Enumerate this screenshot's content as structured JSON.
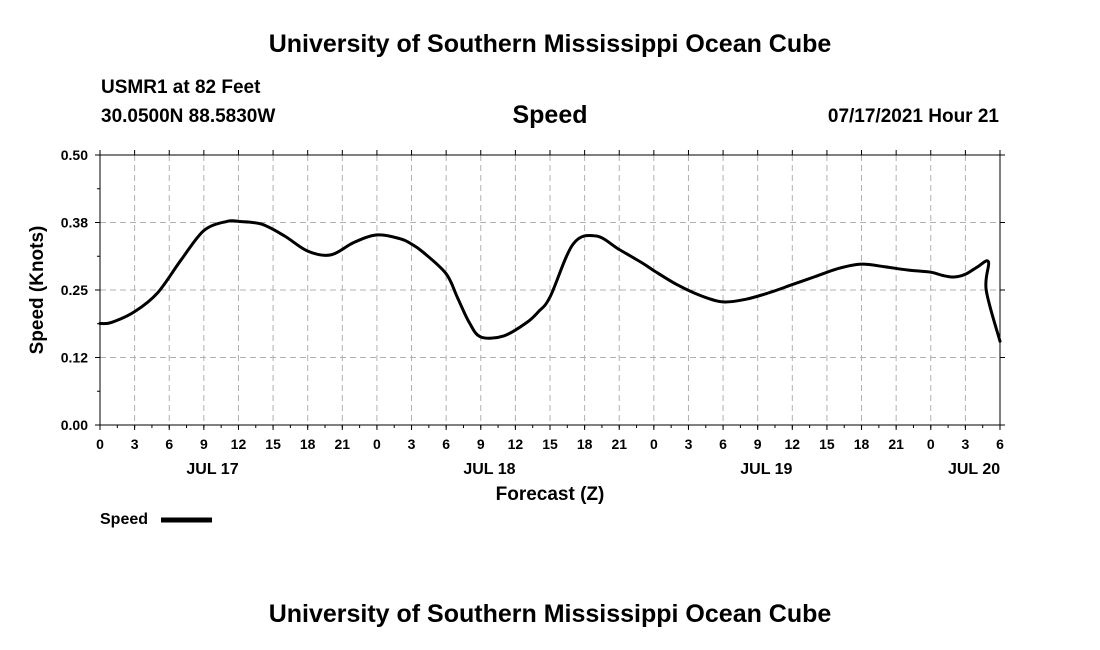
{
  "header": {
    "title": "University of Southern Mississippi Ocean Cube",
    "station": "USMR1 at 82 Feet",
    "location": "30.0500N  88.5830W",
    "variable": "Speed",
    "timestamp": "07/17/2021 Hour 21"
  },
  "footer": {
    "title": "University of Southern Mississippi Ocean Cube"
  },
  "chart_data": {
    "type": "line",
    "title": "Speed",
    "xlabel": "Forecast (Z)",
    "ylabel": "Speed (Knots)",
    "ylim": [
      0,
      0.5
    ],
    "xlim": [
      0,
      78
    ],
    "grid": true,
    "y_ticks": [
      {
        "value": 0.0,
        "label": "0.00"
      },
      {
        "value": 0.125,
        "label": "0.12"
      },
      {
        "value": 0.25,
        "label": "0.25"
      },
      {
        "value": 0.375,
        "label": "0.38"
      },
      {
        "value": 0.5,
        "label": "0.50"
      }
    ],
    "x_ticks": [
      {
        "hour": 0,
        "label": "0"
      },
      {
        "hour": 3,
        "label": "3"
      },
      {
        "hour": 6,
        "label": "6"
      },
      {
        "hour": 9,
        "label": "9"
      },
      {
        "hour": 12,
        "label": "12"
      },
      {
        "hour": 15,
        "label": "15"
      },
      {
        "hour": 18,
        "label": "18"
      },
      {
        "hour": 21,
        "label": "21"
      },
      {
        "hour": 24,
        "label": "0"
      },
      {
        "hour": 27,
        "label": "3"
      },
      {
        "hour": 30,
        "label": "6"
      },
      {
        "hour": 33,
        "label": "9"
      },
      {
        "hour": 36,
        "label": "12"
      },
      {
        "hour": 39,
        "label": "15"
      },
      {
        "hour": 42,
        "label": "18"
      },
      {
        "hour": 45,
        "label": "21"
      },
      {
        "hour": 48,
        "label": "0"
      },
      {
        "hour": 51,
        "label": "3"
      },
      {
        "hour": 54,
        "label": "6"
      },
      {
        "hour": 57,
        "label": "9"
      },
      {
        "hour": 60,
        "label": "12"
      },
      {
        "hour": 63,
        "label": "15"
      },
      {
        "hour": 66,
        "label": "18"
      },
      {
        "hour": 69,
        "label": "21"
      },
      {
        "hour": 72,
        "label": "0"
      },
      {
        "hour": 75,
        "label": "3"
      },
      {
        "hour": 78,
        "label": "6"
      }
    ],
    "day_labels": [
      {
        "hour": 9.75,
        "label": "JUL 17"
      },
      {
        "hour": 33.75,
        "label": "JUL 18"
      },
      {
        "hour": 57.75,
        "label": "JUL 19"
      },
      {
        "hour": 75.75,
        "label": "JUL 20"
      }
    ],
    "series": [
      {
        "name": "Speed",
        "color": "#000000",
        "x": [
          0,
          1,
          3,
          5,
          7,
          9,
          11,
          12,
          14,
          16,
          18,
          20,
          22,
          24,
          26,
          27,
          28,
          30,
          31,
          32,
          33,
          35,
          37,
          38,
          39,
          41,
          43,
          45,
          47,
          48,
          50,
          52,
          54,
          56,
          58,
          60,
          62,
          64,
          66,
          68,
          70,
          72,
          73,
          74,
          75,
          76,
          77,
          78
        ],
        "values": [
          0.188,
          0.19,
          0.21,
          0.245,
          0.305,
          0.36,
          0.377,
          0.377,
          0.372,
          0.35,
          0.322,
          0.315,
          0.338,
          0.352,
          0.345,
          0.335,
          0.32,
          0.28,
          0.235,
          0.19,
          0.163,
          0.165,
          0.19,
          0.21,
          0.237,
          0.335,
          0.35,
          0.325,
          0.3,
          0.286,
          0.26,
          0.24,
          0.228,
          0.233,
          0.245,
          0.26,
          0.275,
          0.29,
          0.298,
          0.293,
          0.287,
          0.283,
          0.277,
          0.274,
          0.279,
          0.292,
          0.302,
          0.3
        ]
      }
    ],
    "series_tail": {
      "x": [
        78
      ],
      "values": [
        0.155
      ]
    },
    "legend": {
      "label": "Speed",
      "placement": "bottom-left"
    }
  }
}
